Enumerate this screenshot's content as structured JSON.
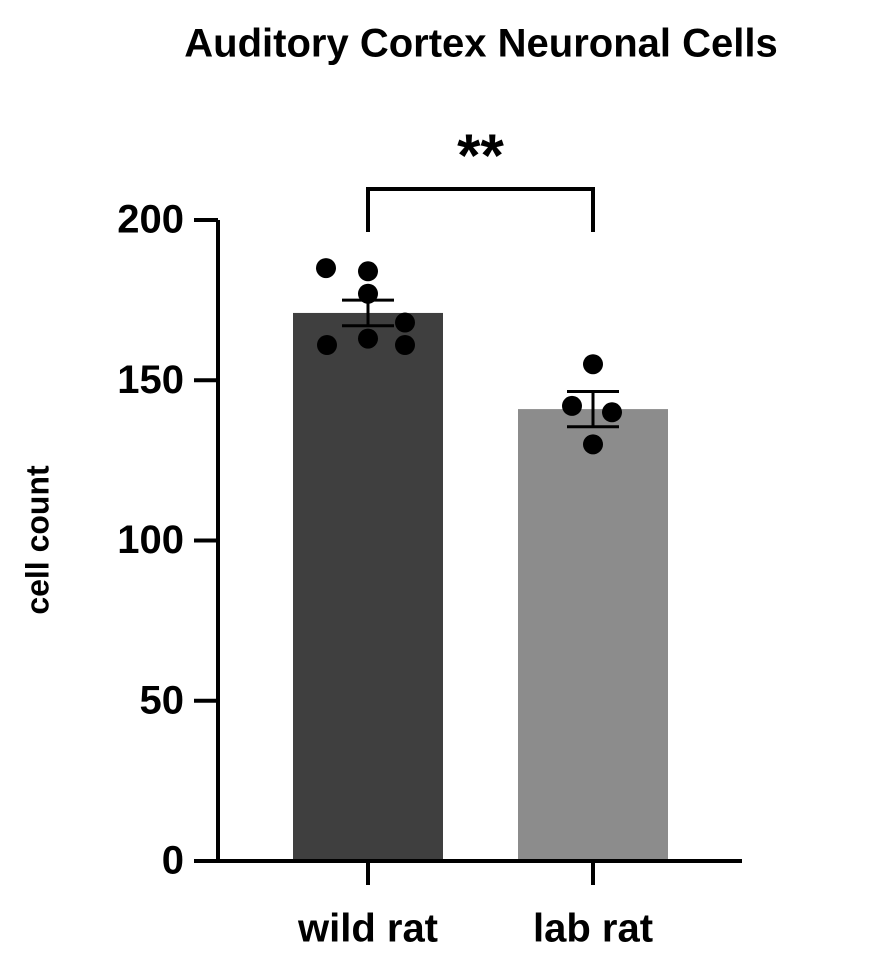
{
  "chart_data": {
    "type": "bar",
    "title": "Auditory Cortex Neuronal Cells",
    "y_label": "cell count",
    "categories": [
      "wild rat",
      "lab rat"
    ],
    "values": [
      171,
      141
    ],
    "errors": [
      4,
      5.5
    ],
    "colors": [
      "#3f3f3f",
      "#8c8c8c"
    ],
    "points": [
      [
        185,
        184,
        177,
        161,
        163,
        161,
        168
      ],
      [
        155,
        142,
        140,
        130
      ]
    ],
    "ylim": [
      0,
      200
    ],
    "yticks": [
      0,
      50,
      100,
      150,
      200
    ],
    "significance": "**"
  }
}
